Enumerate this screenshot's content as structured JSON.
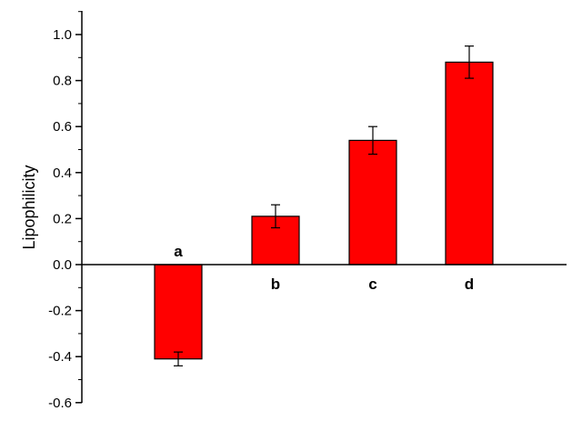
{
  "chart_data": {
    "type": "bar",
    "ylabel": "Lipophilicity",
    "categories": [
      "a",
      "b",
      "c",
      "d"
    ],
    "values": [
      -0.41,
      0.21,
      0.54,
      0.88
    ],
    "errors": [
      0.03,
      0.05,
      0.06,
      0.07
    ],
    "ylim": [
      -0.6,
      1.1
    ],
    "yticks": [
      "-0.6",
      "-0.4",
      "-0.2",
      "0.0",
      "0.2",
      "0.4",
      "0.6",
      "0.8",
      "1.0"
    ],
    "bar_color": "#ff0000",
    "grid": false,
    "legend": "none"
  }
}
